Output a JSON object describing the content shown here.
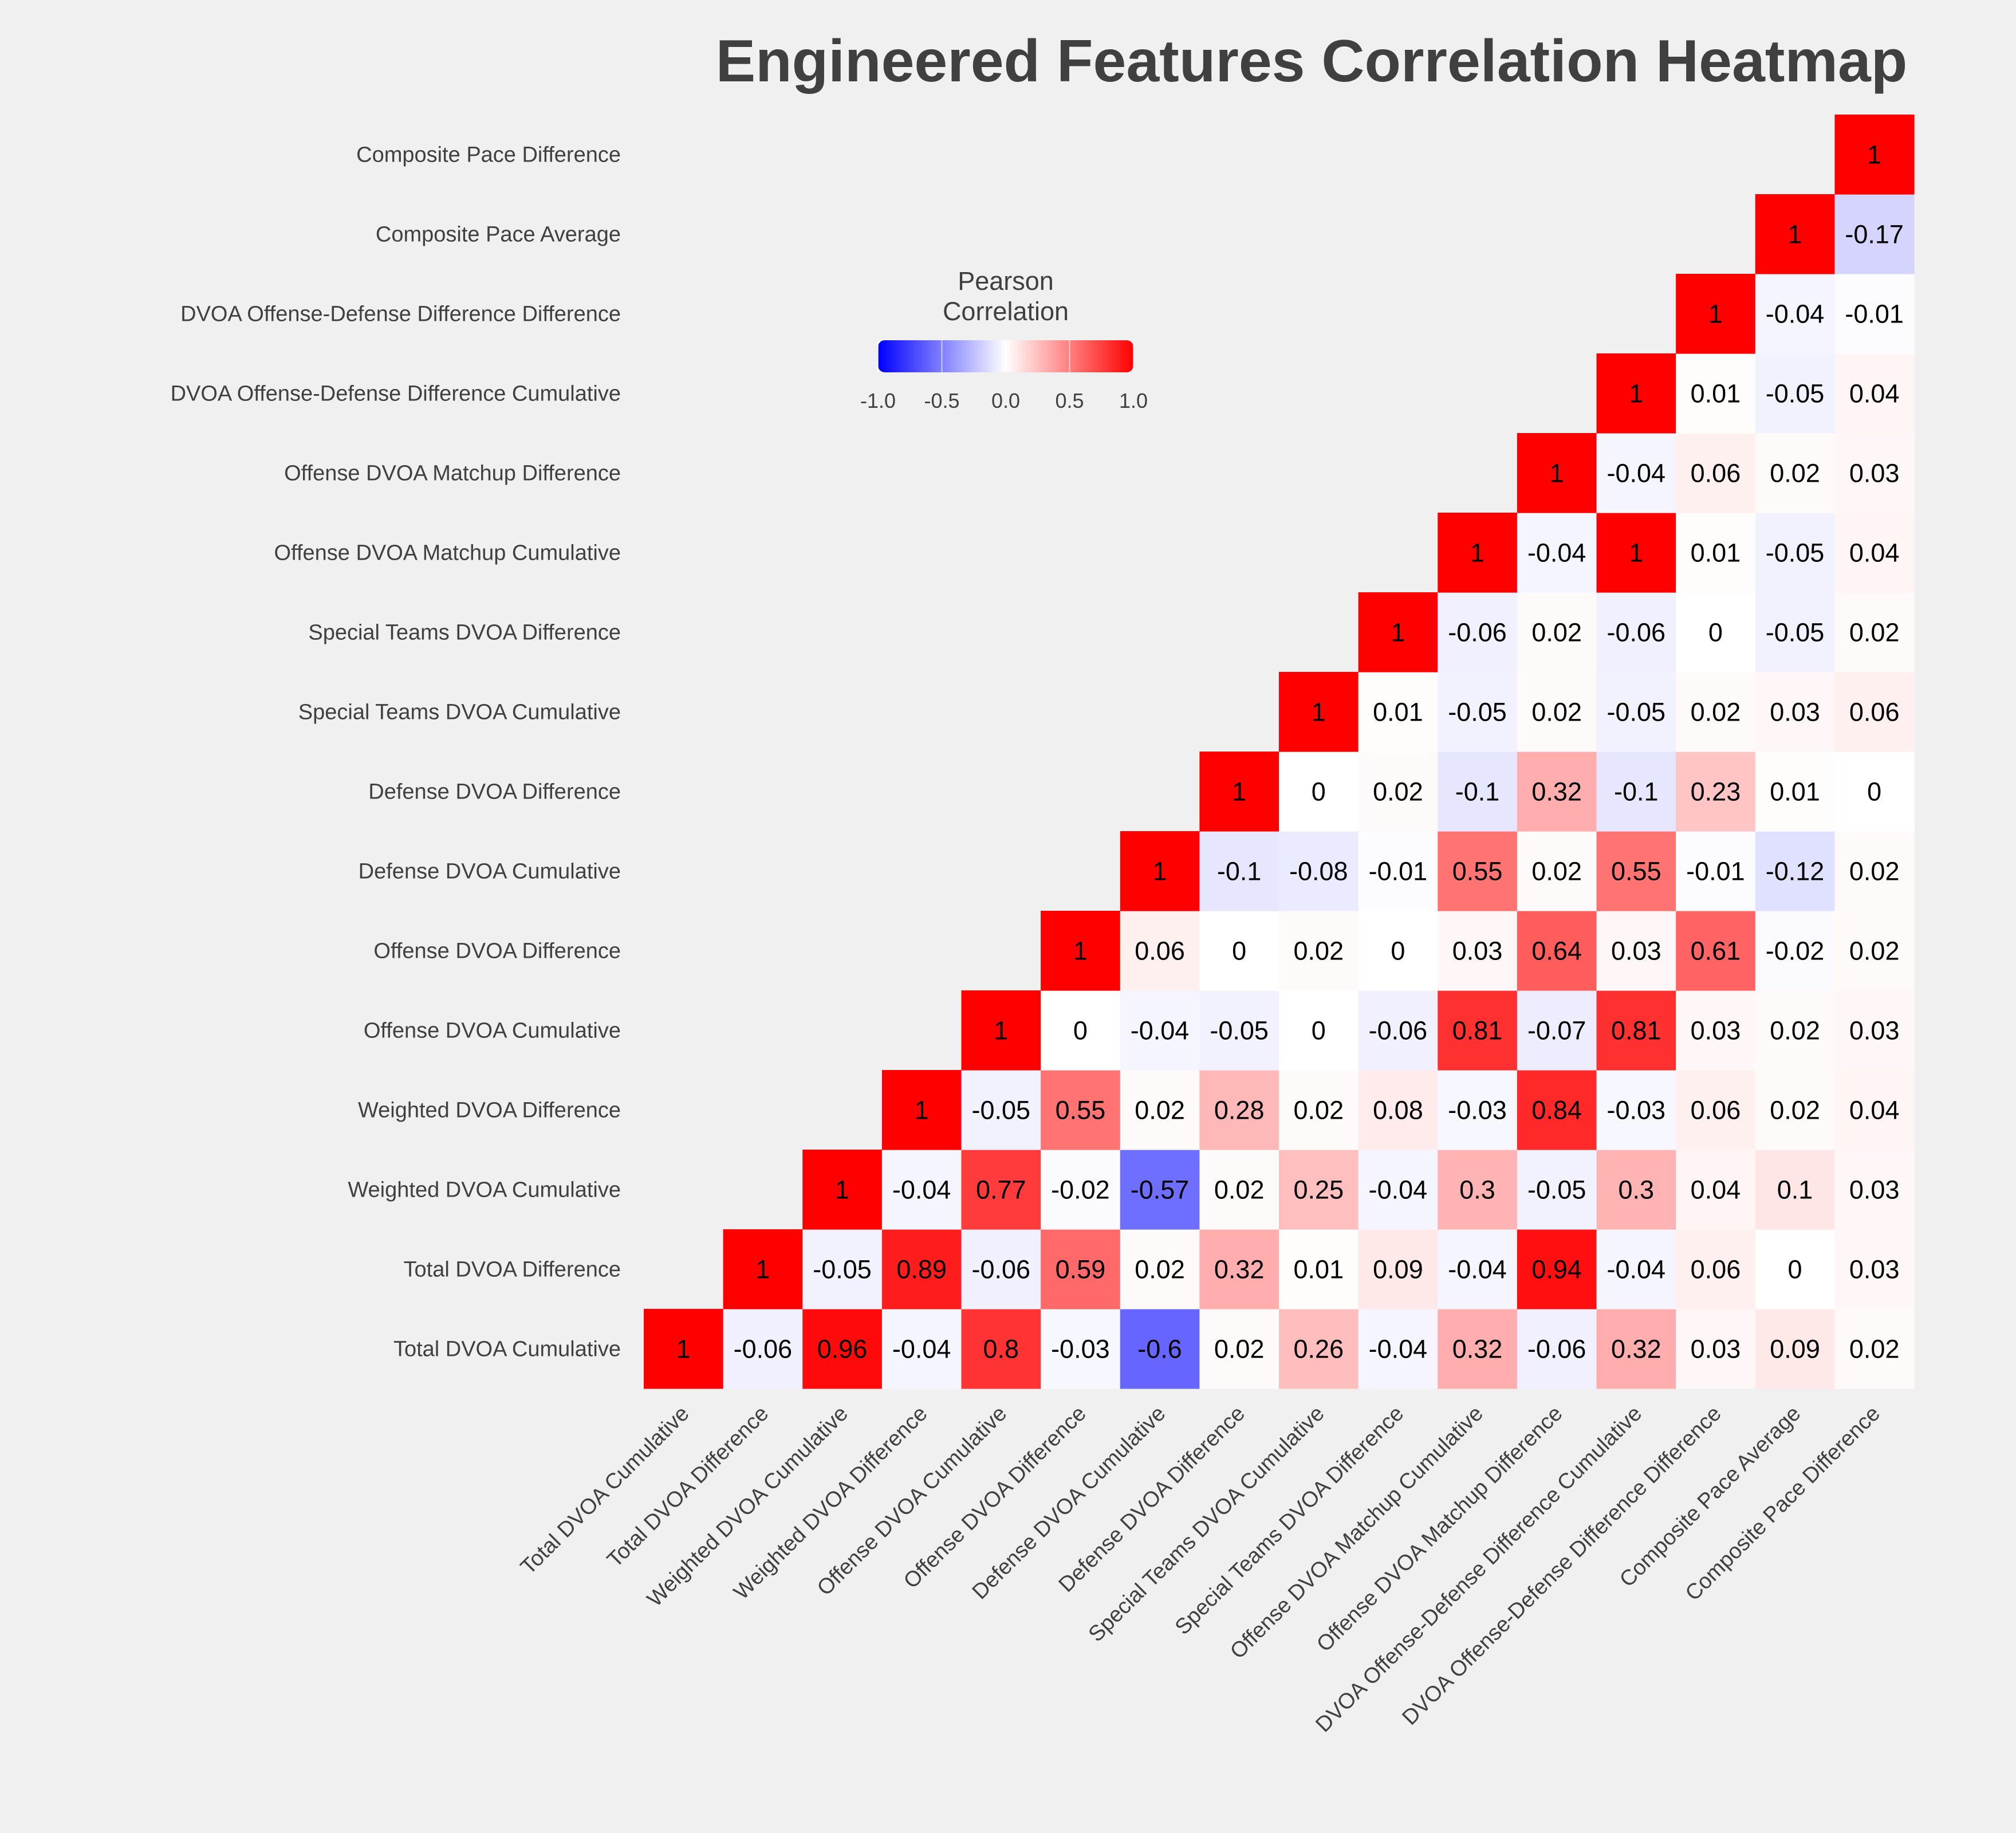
{
  "chart_data": {
    "type": "heatmap",
    "title": "Engineered Features Correlation Heatmap",
    "variables": [
      "Total DVOA Cumulative",
      "Total DVOA Difference",
      "Weighted DVOA Cumulative",
      "Weighted DVOA Difference",
      "Offense DVOA Cumulative",
      "Offense DVOA Difference",
      "Defense DVOA Cumulative",
      "Defense DVOA Difference",
      "Special Teams DVOA Cumulative",
      "Special Teams DVOA Difference",
      "Offense DVOA Matchup Cumulative",
      "Offense DVOA Matchup Difference",
      "DVOA Offense-Defense Difference Cumulative",
      "DVOA Offense-Defense Difference Difference",
      "Composite Pace Average",
      "Composite Pace Difference"
    ],
    "matrix": [
      [
        1,
        -0.06,
        0.96,
        -0.04,
        0.8,
        -0.03,
        -0.6,
        0.02,
        0.26,
        -0.04,
        0.32,
        -0.06,
        0.32,
        0.03,
        0.09,
        0.02
      ],
      [
        null,
        1,
        -0.05,
        0.89,
        -0.06,
        0.59,
        0.02,
        0.32,
        0.01,
        0.09,
        -0.04,
        0.94,
        -0.04,
        0.06,
        0,
        0.03
      ],
      [
        null,
        null,
        1,
        -0.04,
        0.77,
        -0.02,
        -0.57,
        0.02,
        0.25,
        -0.04,
        0.3,
        -0.05,
        0.3,
        0.04,
        0.1,
        0.03
      ],
      [
        null,
        null,
        null,
        1,
        -0.05,
        0.55,
        0.02,
        0.28,
        0.02,
        0.08,
        -0.03,
        0.84,
        -0.03,
        0.06,
        0.02,
        0.04
      ],
      [
        null,
        null,
        null,
        null,
        1,
        0,
        -0.04,
        -0.05,
        0,
        -0.06,
        0.81,
        -0.07,
        0.81,
        0.03,
        0.02,
        0.03
      ],
      [
        null,
        null,
        null,
        null,
        null,
        1,
        0.06,
        0,
        0.02,
        0,
        0.03,
        0.64,
        0.03,
        0.61,
        -0.02,
        0.02
      ],
      [
        null,
        null,
        null,
        null,
        null,
        null,
        1,
        -0.1,
        -0.08,
        -0.01,
        0.55,
        0.02,
        0.55,
        -0.01,
        -0.12,
        0.02
      ],
      [
        null,
        null,
        null,
        null,
        null,
        null,
        null,
        1,
        0,
        0.02,
        -0.1,
        0.32,
        -0.1,
        0.23,
        0.01,
        0
      ],
      [
        null,
        null,
        null,
        null,
        null,
        null,
        null,
        null,
        1,
        0.01,
        -0.05,
        0.02,
        -0.05,
        0.02,
        0.03,
        0.06
      ],
      [
        null,
        null,
        null,
        null,
        null,
        null,
        null,
        null,
        null,
        1,
        -0.06,
        0.02,
        -0.06,
        0,
        -0.05,
        0.02
      ],
      [
        null,
        null,
        null,
        null,
        null,
        null,
        null,
        null,
        null,
        null,
        1,
        -0.04,
        1,
        0.01,
        -0.05,
        0.04
      ],
      [
        null,
        null,
        null,
        null,
        null,
        null,
        null,
        null,
        null,
        null,
        null,
        1,
        -0.04,
        0.06,
        0.02,
        0.03
      ],
      [
        null,
        null,
        null,
        null,
        null,
        null,
        null,
        null,
        null,
        null,
        null,
        null,
        1,
        0.01,
        -0.05,
        0.04
      ],
      [
        null,
        null,
        null,
        null,
        null,
        null,
        null,
        null,
        null,
        null,
        null,
        null,
        null,
        1,
        -0.04,
        -0.01
      ],
      [
        null,
        null,
        null,
        null,
        null,
        null,
        null,
        null,
        null,
        null,
        null,
        null,
        null,
        null,
        1,
        -0.17
      ],
      [
        null,
        null,
        null,
        null,
        null,
        null,
        null,
        null,
        null,
        null,
        null,
        null,
        null,
        null,
        null,
        1
      ]
    ],
    "colorbar": {
      "title_lines": [
        "Pearson",
        "Correlation"
      ],
      "range": [
        -1,
        1
      ],
      "ticks": [
        "-1.0",
        "-0.5",
        "0.0",
        "0.5",
        "1.0"
      ],
      "colors": [
        "#0000ff",
        "#ffffff",
        "#ff0000"
      ],
      "placement": "top-left"
    },
    "background": "#f0f0f0"
  }
}
